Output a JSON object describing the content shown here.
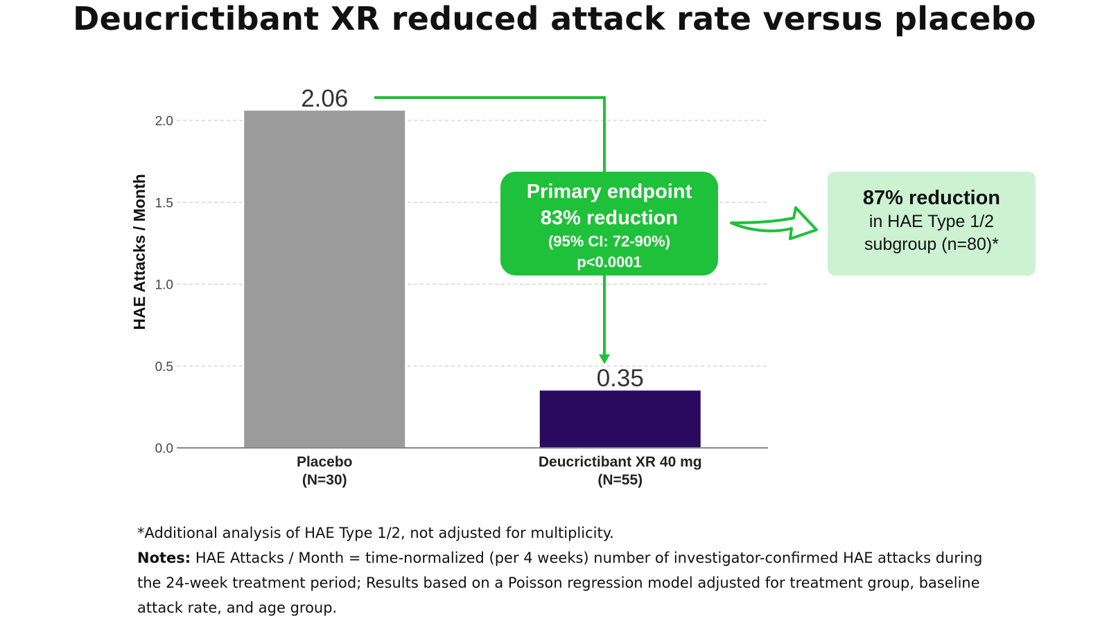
{
  "chart_data": {
    "type": "bar",
    "title": "Deucrictibant XR reduced attack rate versus placebo",
    "ylabel": "HAE Attacks / Month",
    "ylim": [
      0,
      2.0
    ],
    "yticks": [
      "0.0",
      "0.5",
      "1.0",
      "1.5",
      "2.0"
    ],
    "grid": true,
    "categories": [
      {
        "line1": "Placebo",
        "line2": "(N=30)"
      },
      {
        "line1": "Deucrictibant XR 40 mg",
        "line2": "(N=55)"
      }
    ],
    "values": [
      2.06,
      0.35
    ],
    "value_labels": [
      "2.06",
      "0.35"
    ],
    "colors": [
      "#9b9b9b",
      "#2a0a5e"
    ]
  },
  "callouts": {
    "primary": {
      "line1": "Primary endpoint",
      "line2": "83% reduction",
      "line3": "(95% CI: 72-90%)",
      "line4": "p<0.0001",
      "color": "#1fc13a"
    },
    "subgroup": {
      "bold": "87% reduction",
      "line2": "in HAE Type 1/2",
      "line3": "subgroup (n=80)*",
      "color": "#ccf2d2"
    }
  },
  "footnotes": {
    "asterisk": "*Additional analysis of HAE Type 1/2, not adjusted for multiplicity.",
    "notes_label": "Notes:",
    "notes_text": " HAE Attacks / Month = time-normalized (per 4 weeks) number of investigator-confirmed HAE attacks during the 24-week treatment period; Results based on a Poisson regression model adjusted for treatment group, baseline attack rate, and age group."
  }
}
